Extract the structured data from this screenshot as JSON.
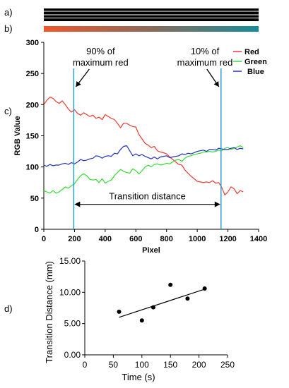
{
  "panel_labels": {
    "a": "a)",
    "b": "b)",
    "c": "c)",
    "d": "d)"
  },
  "colors": {
    "red": "#ee3a2f",
    "green": "#33dd33",
    "blue": "#2233bb",
    "marker_line": "#2a9fd6",
    "gradient_start": "#f2572b",
    "gradient_mid": "#8a6a5a",
    "gradient_end": "#168d9b"
  },
  "chart_data": [
    {
      "type": "line",
      "ylabel": "RGB Value",
      "xlabel": "Pixel",
      "xlim": [
        0,
        1400
      ],
      "ylim": [
        0,
        300
      ],
      "x_ticks": [
        0,
        200,
        400,
        600,
        800,
        1000,
        1200,
        1400
      ],
      "y_ticks": [
        0,
        50,
        100,
        150,
        200,
        250,
        300
      ],
      "x_tick_labels": [
        "0",
        "200",
        "400",
        "600",
        "800",
        "1000",
        "1200",
        "1400"
      ],
      "y_tick_labels": [
        "0",
        "50",
        "100",
        "150",
        "200",
        "250",
        "300"
      ],
      "grid": false,
      "legend_position": "top-right",
      "series": [
        {
          "name": "Red",
          "x": [
            0,
            20,
            40,
            60,
            80,
            100,
            120,
            140,
            160,
            180,
            200,
            220,
            240,
            260,
            280,
            300,
            320,
            340,
            360,
            380,
            400,
            420,
            440,
            460,
            480,
            500,
            520,
            540,
            560,
            580,
            600,
            620,
            640,
            660,
            680,
            700,
            720,
            740,
            760,
            780,
            800,
            820,
            840,
            860,
            880,
            900,
            920,
            940,
            960,
            980,
            1000,
            1020,
            1040,
            1060,
            1080,
            1100,
            1120,
            1140,
            1160,
            1180,
            1200,
            1220,
            1240,
            1260,
            1280,
            1300
          ],
          "values": [
            200,
            207,
            212,
            210,
            205,
            202,
            206,
            200,
            193,
            188,
            192,
            186,
            183,
            187,
            184,
            181,
            183,
            178,
            180,
            176,
            184,
            181,
            178,
            176,
            170,
            163,
            170,
            170,
            167,
            165,
            164,
            152,
            145,
            138,
            135,
            131,
            133,
            126,
            124,
            123,
            121,
            116,
            112,
            108,
            104,
            103,
            95,
            90,
            85,
            81,
            77,
            76,
            75,
            76,
            75,
            78,
            74,
            75,
            67,
            55,
            60,
            68,
            65,
            57,
            62,
            60
          ]
        },
        {
          "name": "Green",
          "x": [
            0,
            20,
            40,
            60,
            80,
            100,
            120,
            140,
            160,
            180,
            200,
            220,
            240,
            260,
            280,
            300,
            320,
            340,
            360,
            380,
            400,
            420,
            440,
            460,
            480,
            500,
            520,
            540,
            560,
            580,
            600,
            620,
            640,
            660,
            680,
            700,
            720,
            740,
            760,
            780,
            800,
            820,
            840,
            860,
            880,
            900,
            920,
            940,
            960,
            980,
            1000,
            1020,
            1040,
            1060,
            1080,
            1100,
            1120,
            1140,
            1160,
            1180,
            1200,
            1220,
            1240,
            1260,
            1280,
            1300
          ],
          "values": [
            62,
            60,
            58,
            62,
            58,
            60,
            64,
            68,
            66,
            70,
            73,
            80,
            86,
            89,
            86,
            80,
            79,
            80,
            75,
            81,
            74,
            77,
            79,
            86,
            91,
            96,
            93,
            91,
            90,
            97,
            94,
            89,
            94,
            100,
            103,
            100,
            104,
            105,
            103,
            104,
            106,
            105,
            108,
            111,
            112,
            109,
            114,
            117,
            118,
            120,
            121,
            122,
            124,
            124,
            125,
            124,
            125,
            127,
            126,
            130,
            131,
            128,
            130,
            132,
            134,
            131
          ]
        },
        {
          "name": "Blue",
          "x": [
            0,
            20,
            40,
            60,
            80,
            100,
            120,
            140,
            160,
            180,
            200,
            220,
            240,
            260,
            280,
            300,
            320,
            340,
            360,
            380,
            400,
            420,
            440,
            460,
            480,
            500,
            520,
            540,
            560,
            580,
            600,
            620,
            640,
            660,
            680,
            700,
            720,
            740,
            760,
            780,
            800,
            820,
            840,
            860,
            880,
            900,
            920,
            940,
            960,
            980,
            1000,
            1020,
            1040,
            1060,
            1080,
            1100,
            1120,
            1140,
            1160,
            1180,
            1200,
            1220,
            1240,
            1260,
            1280,
            1300
          ],
          "values": [
            103,
            101,
            104,
            102,
            103,
            103,
            105,
            106,
            104,
            107,
            105,
            108,
            112,
            110,
            111,
            113,
            114,
            118,
            117,
            114,
            117,
            118,
            117,
            122,
            121,
            128,
            133,
            134,
            126,
            118,
            121,
            118,
            120,
            117,
            115,
            113,
            116,
            113,
            116,
            117,
            118,
            115,
            116,
            117,
            118,
            121,
            120,
            122,
            121,
            123,
            125,
            126,
            127,
            125,
            128,
            128,
            127,
            130,
            129,
            128,
            128,
            130,
            131,
            128,
            130,
            129
          ]
        }
      ],
      "markers": [
        {
          "x": 195,
          "label_lines": [
            "90% of",
            "maximum red"
          ]
        },
        {
          "x": 1155,
          "label_lines": [
            "10% of",
            "maximum red"
          ]
        }
      ],
      "transition_label": "Transition distance",
      "transition_y": 40
    },
    {
      "type": "scatter",
      "xlabel": "Time (s)",
      "ylabel": "Transition Distance (mm)",
      "xlim": [
        0,
        250
      ],
      "ylim": [
        0,
        15
      ],
      "x_ticks": [
        0,
        50,
        100,
        150,
        200,
        250
      ],
      "y_ticks": [
        0,
        5,
        10,
        15
      ],
      "x_tick_labels": [
        "0",
        "50",
        "100",
        "150",
        "200",
        "250"
      ],
      "y_tick_labels": [
        "0.00",
        "5.00",
        "10.00",
        "15.00"
      ],
      "grid": false,
      "points": {
        "x": [
          60,
          100,
          120,
          150,
          180,
          210
        ],
        "y": [
          6.9,
          5.5,
          7.6,
          11.2,
          9.0,
          10.6
        ]
      },
      "trendline": {
        "x": [
          60,
          210
        ],
        "y": [
          6.0,
          10.5
        ]
      }
    }
  ]
}
